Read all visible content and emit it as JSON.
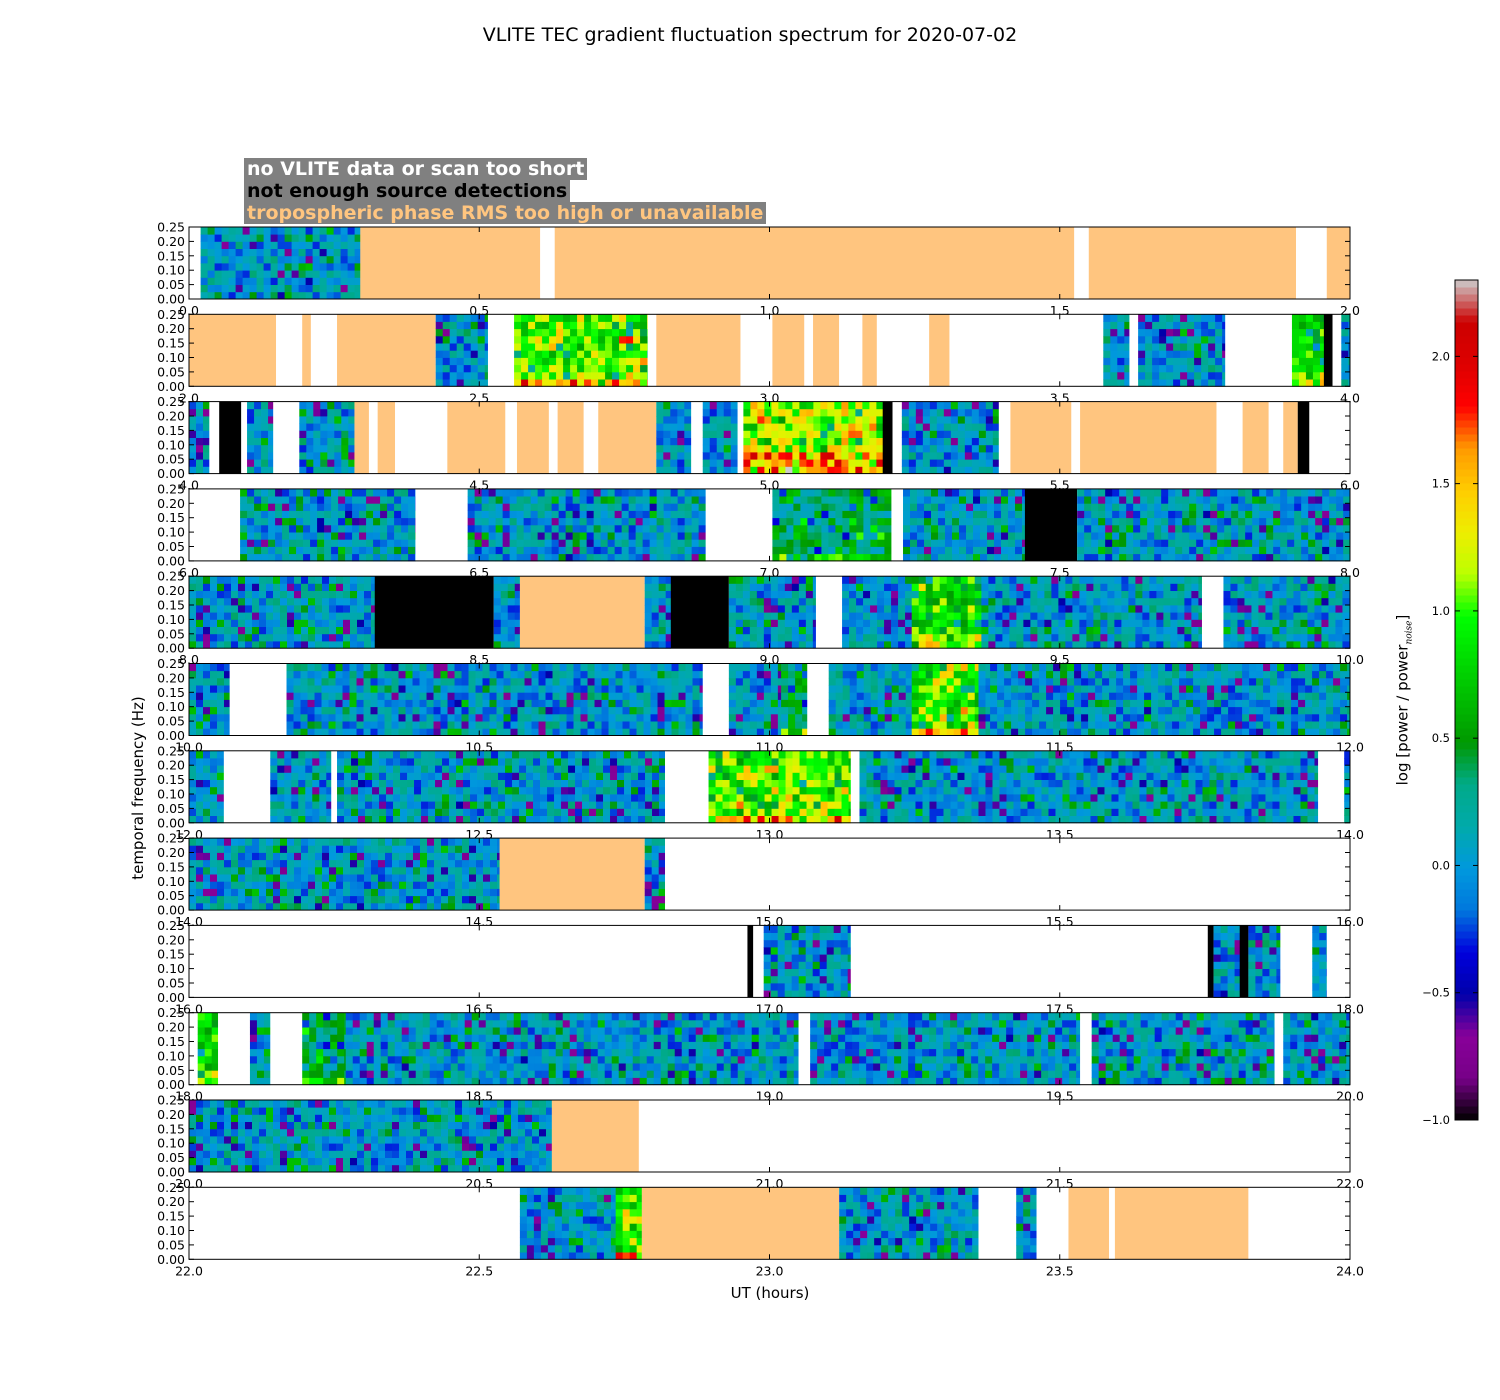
{
  "chart_data": {
    "type": "heatmap",
    "title": "VLITE TEC gradient fluctuation spectrum for 2020-07-02",
    "xlabel": "UT (hours)",
    "ylabel": "temporal frequency (Hz)",
    "colorbar_label_main": "log [power / power",
    "colorbar_label_sub": "noise",
    "colorbar_label_end": "]",
    "colorbar_range": [
      -1.0,
      2.3
    ],
    "colorbar_ticks": [
      "−1.0",
      "−0.5",
      "0.0",
      "0.5",
      "1.0",
      "1.5",
      "2.0"
    ],
    "colormap": "nipy_spectral",
    "ylim": [
      0,
      0.25
    ],
    "y_ticks": [
      "0.00",
      "0.05",
      "0.10",
      "0.15",
      "0.20",
      "0.25"
    ],
    "legend": [
      {
        "label": "no VLITE data or scan too short",
        "color": "#ffffff"
      },
      {
        "label": "not enough source detections",
        "color": "#000000"
      },
      {
        "label": "tropospheric phase RMS too high or unavailable",
        "color": "#ffc57f"
      }
    ],
    "legend_background": "#808080",
    "category_colors": {
      "orange": "#ffc57f",
      "black": "#000000",
      "white": "#ffffff"
    },
    "panels": [
      {
        "range": [
          0,
          2
        ],
        "x_ticks": [
          "0.0",
          "0.5",
          "1.0",
          "1.5",
          "2.0"
        ],
        "segments": [
          [
            0,
            0.02,
            "w"
          ],
          [
            0.02,
            0.295,
            "d"
          ],
          [
            0.295,
            0.605,
            "o"
          ],
          [
            0.605,
            0.63,
            "w"
          ],
          [
            0.63,
            1.525,
            "o"
          ],
          [
            1.525,
            1.55,
            "w"
          ],
          [
            1.55,
            1.907,
            "o"
          ],
          [
            1.907,
            1.96,
            "w"
          ],
          [
            1.96,
            2.0,
            "o"
          ]
        ]
      },
      {
        "range": [
          2,
          4
        ],
        "x_ticks": [
          "2.0",
          "2.5",
          "3.0",
          "3.5",
          "4.0"
        ],
        "segments": [
          [
            2.0,
            2.15,
            "o"
          ],
          [
            2.15,
            2.195,
            "w"
          ],
          [
            2.195,
            2.21,
            "o"
          ],
          [
            2.21,
            2.255,
            "w"
          ],
          [
            2.255,
            2.425,
            "o"
          ],
          [
            2.425,
            2.515,
            "d"
          ],
          [
            2.515,
            2.56,
            "w"
          ],
          [
            2.56,
            2.79,
            "d",
            3
          ],
          [
            2.79,
            2.805,
            "w"
          ],
          [
            2.805,
            2.95,
            "o"
          ],
          [
            2.95,
            3.005,
            "w"
          ],
          [
            3.005,
            3.06,
            "o"
          ],
          [
            3.06,
            3.075,
            "w"
          ],
          [
            3.075,
            3.12,
            "o"
          ],
          [
            3.12,
            3.16,
            "w"
          ],
          [
            3.16,
            3.185,
            "o"
          ],
          [
            3.185,
            3.275,
            "w"
          ],
          [
            3.275,
            3.31,
            "o"
          ],
          [
            3.31,
            3.575,
            "w"
          ],
          [
            3.575,
            3.62,
            "d"
          ],
          [
            3.62,
            3.635,
            "w"
          ],
          [
            3.635,
            3.785,
            "d"
          ],
          [
            3.785,
            3.9,
            "w"
          ],
          [
            3.9,
            3.955,
            "d",
            2
          ],
          [
            3.955,
            3.97,
            "b"
          ],
          [
            3.97,
            3.985,
            "w"
          ],
          [
            3.985,
            4.0,
            "d"
          ]
        ]
      },
      {
        "range": [
          4,
          6
        ],
        "x_ticks": [
          "4.0",
          "4.5",
          "5.0",
          "5.5",
          "6.0"
        ],
        "segments": [
          [
            4.0,
            4.035,
            "d"
          ],
          [
            4.035,
            4.052,
            "w"
          ],
          [
            4.052,
            4.09,
            "b"
          ],
          [
            4.09,
            4.1,
            "w"
          ],
          [
            4.1,
            4.145,
            "d"
          ],
          [
            4.145,
            4.19,
            "w"
          ],
          [
            4.19,
            4.285,
            "d"
          ],
          [
            4.285,
            4.31,
            "o"
          ],
          [
            4.31,
            4.325,
            "w"
          ],
          [
            4.325,
            4.355,
            "o"
          ],
          [
            4.355,
            4.445,
            "w"
          ],
          [
            4.445,
            4.545,
            "o"
          ],
          [
            4.545,
            4.565,
            "w"
          ],
          [
            4.565,
            4.62,
            "o"
          ],
          [
            4.62,
            4.635,
            "w"
          ],
          [
            4.635,
            4.68,
            "o"
          ],
          [
            4.68,
            4.705,
            "w"
          ],
          [
            4.705,
            4.805,
            "o"
          ],
          [
            4.805,
            4.865,
            "d"
          ],
          [
            4.865,
            4.885,
            "w"
          ],
          [
            4.885,
            4.945,
            "d"
          ],
          [
            4.945,
            4.955,
            "w"
          ],
          [
            4.955,
            5.195,
            "d",
            4
          ],
          [
            5.195,
            5.212,
            "b"
          ],
          [
            5.212,
            5.228,
            "w"
          ],
          [
            5.228,
            5.395,
            "d"
          ],
          [
            5.395,
            5.415,
            "w"
          ],
          [
            5.415,
            5.52,
            "o"
          ],
          [
            5.52,
            5.535,
            "w"
          ],
          [
            5.535,
            5.77,
            "o"
          ],
          [
            5.77,
            5.815,
            "w"
          ],
          [
            5.815,
            5.86,
            "o"
          ],
          [
            5.86,
            5.885,
            "w"
          ],
          [
            5.885,
            5.91,
            "o"
          ],
          [
            5.91,
            5.93,
            "b"
          ],
          [
            5.93,
            6.0,
            "w"
          ]
        ]
      },
      {
        "range": [
          6,
          8
        ],
        "x_ticks": [
          "6.0",
          "6.5",
          "7.0",
          "7.5",
          "8.0"
        ],
        "segments": [
          [
            6.0,
            6.088,
            "w"
          ],
          [
            6.088,
            6.39,
            "d"
          ],
          [
            6.39,
            6.48,
            "w"
          ],
          [
            6.48,
            6.89,
            "d"
          ],
          [
            6.89,
            7.005,
            "w"
          ],
          [
            7.005,
            7.21,
            "d",
            1
          ],
          [
            7.21,
            7.23,
            "w"
          ],
          [
            7.23,
            7.44,
            "d"
          ],
          [
            7.44,
            7.53,
            "b"
          ],
          [
            7.53,
            8.0,
            "d"
          ]
        ]
      },
      {
        "range": [
          8,
          10
        ],
        "x_ticks": [
          "8.0",
          "8.5",
          "9.0",
          "9.5",
          "10.0"
        ],
        "segments": [
          [
            8.0,
            8.32,
            "d"
          ],
          [
            8.32,
            8.525,
            "b"
          ],
          [
            8.525,
            8.57,
            "d"
          ],
          [
            8.57,
            8.785,
            "o"
          ],
          [
            8.785,
            8.83,
            "d"
          ],
          [
            8.83,
            8.93,
            "b"
          ],
          [
            8.93,
            9.08,
            "d"
          ],
          [
            9.08,
            9.125,
            "w"
          ],
          [
            9.125,
            9.245,
            "d"
          ],
          [
            9.245,
            9.365,
            "d",
            2
          ],
          [
            9.365,
            9.745,
            "d"
          ],
          [
            9.745,
            9.782,
            "w"
          ],
          [
            9.782,
            10.0,
            "d"
          ]
        ]
      },
      {
        "range": [
          10,
          12
        ],
        "x_ticks": [
          "10.0",
          "10.5",
          "11.0",
          "11.5",
          "12.0"
        ],
        "segments": [
          [
            10.0,
            10.07,
            "d"
          ],
          [
            10.07,
            10.168,
            "w"
          ],
          [
            10.168,
            10.885,
            "d"
          ],
          [
            10.885,
            10.93,
            "w"
          ],
          [
            10.93,
            11.02,
            "d"
          ],
          [
            11.02,
            11.065,
            "d",
            1
          ],
          [
            11.065,
            11.102,
            "w"
          ],
          [
            11.102,
            11.245,
            "d"
          ],
          [
            11.245,
            11.36,
            "d",
            3
          ],
          [
            11.36,
            11.38,
            "d"
          ],
          [
            11.38,
            12.0,
            "d"
          ]
        ]
      },
      {
        "range": [
          12,
          14
        ],
        "x_ticks": [
          "12.0",
          "12.5",
          "13.0",
          "13.5",
          "14.0"
        ],
        "segments": [
          [
            12.0,
            12.06,
            "d"
          ],
          [
            12.06,
            12.14,
            "w"
          ],
          [
            12.14,
            12.245,
            "d"
          ],
          [
            12.245,
            12.255,
            "w"
          ],
          [
            12.255,
            12.82,
            "d"
          ],
          [
            12.82,
            12.895,
            "w"
          ],
          [
            12.895,
            13.14,
            "d",
            3
          ],
          [
            13.14,
            13.155,
            "w"
          ],
          [
            13.155,
            13.945,
            "d"
          ],
          [
            13.945,
            13.99,
            "w"
          ],
          [
            13.99,
            14.0,
            "d"
          ]
        ]
      },
      {
        "range": [
          14,
          16
        ],
        "x_ticks": [
          "14.0",
          "14.5",
          "15.0",
          "15.5",
          "16.0"
        ],
        "segments": [
          [
            14.0,
            14.535,
            "d"
          ],
          [
            14.535,
            14.785,
            "o"
          ],
          [
            14.785,
            14.82,
            "d"
          ],
          [
            14.82,
            16.0,
            "w"
          ]
        ]
      },
      {
        "range": [
          16,
          18
        ],
        "x_ticks": [
          "16.0",
          "16.5",
          "17.0",
          "17.5",
          "18.0"
        ],
        "segments": [
          [
            16.0,
            16.962,
            "w"
          ],
          [
            16.962,
            16.972,
            "b"
          ],
          [
            16.972,
            16.99,
            "w"
          ],
          [
            16.99,
            17.14,
            "d"
          ],
          [
            17.14,
            17.755,
            "w"
          ],
          [
            17.755,
            17.765,
            "b"
          ],
          [
            17.765,
            17.81,
            "d"
          ],
          [
            17.81,
            17.825,
            "b"
          ],
          [
            17.825,
            17.88,
            "d"
          ],
          [
            17.88,
            17.935,
            "w"
          ],
          [
            17.935,
            17.96,
            "d"
          ],
          [
            17.96,
            18.0,
            "w"
          ]
        ]
      },
      {
        "range": [
          18,
          20
        ],
        "x_ticks": [
          "18.0",
          "18.5",
          "19.0",
          "19.5",
          "20.0"
        ],
        "segments": [
          [
            18.0,
            18.015,
            "w"
          ],
          [
            18.015,
            18.05,
            "d",
            2
          ],
          [
            18.05,
            18.105,
            "w"
          ],
          [
            18.105,
            18.14,
            "d"
          ],
          [
            18.14,
            18.195,
            "w"
          ],
          [
            18.195,
            18.27,
            "d",
            1
          ],
          [
            18.27,
            19.05,
            "d"
          ],
          [
            19.05,
            19.07,
            "w"
          ],
          [
            19.07,
            19.535,
            "d"
          ],
          [
            19.535,
            19.555,
            "w"
          ],
          [
            19.555,
            19.87,
            "d"
          ],
          [
            19.87,
            19.885,
            "w"
          ],
          [
            19.885,
            20.0,
            "d"
          ]
        ]
      },
      {
        "range": [
          20,
          22
        ],
        "x_ticks": [
          "20.0",
          "20.5",
          "21.0",
          "21.5",
          "22.0"
        ],
        "segments": [
          [
            20.0,
            20.625,
            "d"
          ],
          [
            20.625,
            20.775,
            "o"
          ],
          [
            20.775,
            22.0,
            "w"
          ]
        ]
      },
      {
        "range": [
          22,
          24
        ],
        "x_ticks": [
          "22.0",
          "22.5",
          "23.0",
          "23.5",
          "24.0"
        ],
        "segments": [
          [
            22.0,
            22.57,
            "w"
          ],
          [
            22.57,
            22.735,
            "d"
          ],
          [
            22.735,
            22.78,
            "d",
            3
          ],
          [
            22.78,
            23.12,
            "o"
          ],
          [
            23.12,
            23.36,
            "d"
          ],
          [
            23.36,
            23.425,
            "w"
          ],
          [
            23.425,
            23.46,
            "d"
          ],
          [
            23.46,
            23.515,
            "w"
          ],
          [
            23.515,
            23.585,
            "o"
          ],
          [
            23.585,
            23.595,
            "w"
          ],
          [
            23.595,
            23.825,
            "o"
          ],
          [
            23.825,
            24.0,
            "w"
          ]
        ]
      }
    ]
  }
}
